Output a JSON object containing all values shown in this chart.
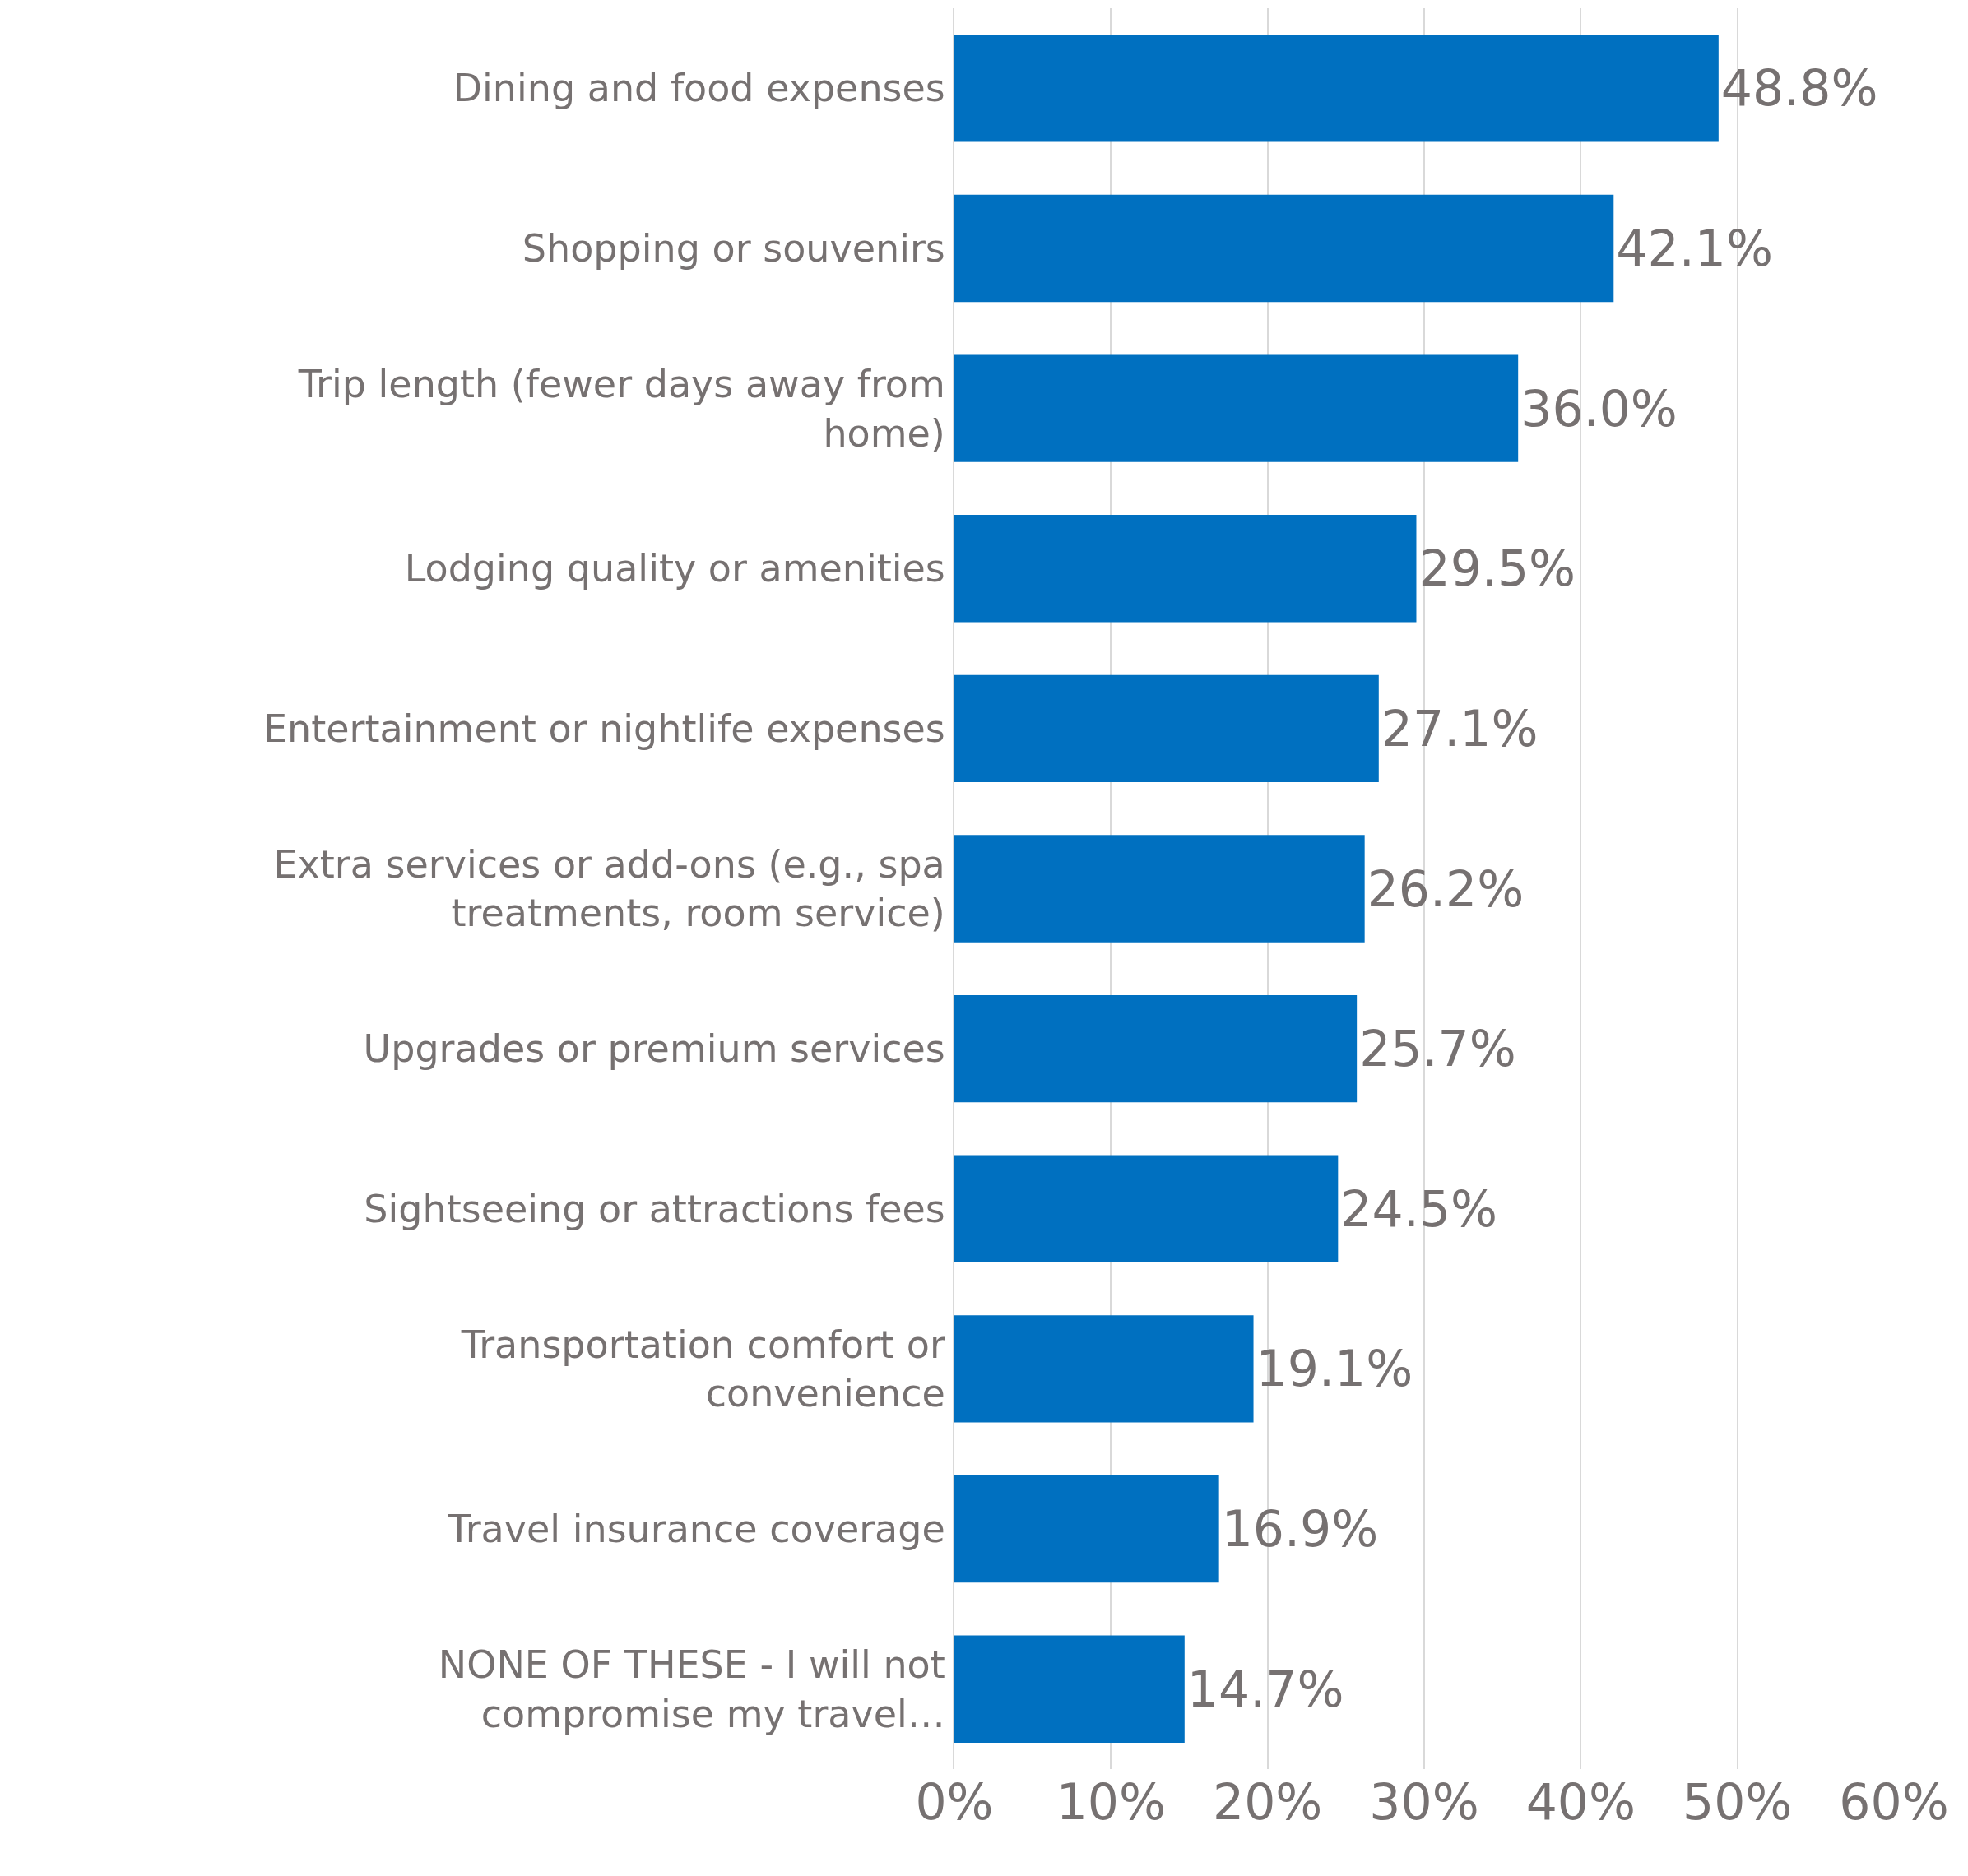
{
  "chart_data": {
    "type": "bar",
    "orientation": "horizontal",
    "categories": [
      "Dining and food expenses",
      "Shopping or souvenirs",
      "Trip length (fewer days away from home)",
      "Lodging quality or amenities",
      "Entertainment or nightlife expenses",
      "Extra services or add-ons (e.g., spa treatments, room service)",
      "Upgrades or premium services",
      "Sightseeing or attractions fees",
      "Transportation comfort or convenience",
      "Travel insurance coverage",
      "NONE OF THESE - I will not compromise my travel…"
    ],
    "values": [
      48.8,
      42.1,
      36.0,
      29.5,
      27.1,
      26.2,
      25.7,
      24.5,
      19.1,
      16.9,
      14.7
    ],
    "value_labels": [
      "48.8%",
      "42.1%",
      "36.0%",
      "29.5%",
      "27.1%",
      "26.2%",
      "25.7%",
      "24.5%",
      "19.1%",
      "16.9%",
      "14.7%"
    ],
    "color": "#0070c0",
    "xlim": [
      0,
      60
    ],
    "xticks": [
      {
        "value": 0,
        "label": "0%"
      },
      {
        "value": 10,
        "label": "10%"
      },
      {
        "value": 20,
        "label": "20%"
      },
      {
        "value": 30,
        "label": "30%"
      },
      {
        "value": 40,
        "label": "40%"
      },
      {
        "value": 50,
        "label": "50%"
      },
      {
        "value": 60,
        "label": "60%"
      }
    ],
    "grid": "x"
  }
}
